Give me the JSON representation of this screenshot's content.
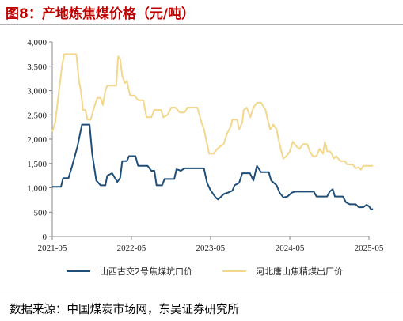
{
  "title": "图8：产地炼焦煤价格（元/吨）",
  "source": "数据来源：中国煤炭市场网，东吴证券研究所",
  "chart_data": {
    "type": "line",
    "y_ticks": [
      "0",
      "500",
      "1,000",
      "1,500",
      "2,000",
      "2,500",
      "3,000",
      "3,500",
      "4,000"
    ],
    "x_ticks": [
      "2021-05",
      "2022-05",
      "2023-05",
      "2024-05",
      "2025-05"
    ],
    "ylim": [
      0,
      4000
    ],
    "xlim": [
      "2021-05",
      "2025-05"
    ],
    "grid": false,
    "legend_position": "bottom",
    "series": [
      {
        "name": "山西古交2号焦煤坑口价",
        "color": "#1f4e79",
        "points": [
          [
            "2021-05-01",
            1020
          ],
          [
            "2021-05-20",
            1020
          ],
          [
            "2021-06-10",
            1020
          ],
          [
            "2021-06-20",
            1200
          ],
          [
            "2021-07-15",
            1200
          ],
          [
            "2021-08-01",
            1450
          ],
          [
            "2021-08-25",
            1850
          ],
          [
            "2021-09-15",
            2300
          ],
          [
            "2021-10-20",
            2300
          ],
          [
            "2021-11-01",
            1700
          ],
          [
            "2021-11-20",
            1150
          ],
          [
            "2021-12-10",
            1050
          ],
          [
            "2022-01-01",
            1050
          ],
          [
            "2022-01-10",
            1250
          ],
          [
            "2022-02-01",
            1300
          ],
          [
            "2022-02-25",
            1120
          ],
          [
            "2022-03-10",
            1200
          ],
          [
            "2022-03-20",
            1550
          ],
          [
            "2022-04-10",
            1550
          ],
          [
            "2022-04-20",
            1650
          ],
          [
            "2022-05-20",
            1650
          ],
          [
            "2022-06-01",
            1450
          ],
          [
            "2022-07-15",
            1450
          ],
          [
            "2022-08-01",
            1350
          ],
          [
            "2022-08-15",
            1350
          ],
          [
            "2022-08-25",
            1050
          ],
          [
            "2022-09-20",
            1050
          ],
          [
            "2022-10-01",
            1180
          ],
          [
            "2022-11-15",
            1180
          ],
          [
            "2022-11-25",
            1380
          ],
          [
            "2022-12-15",
            1350
          ],
          [
            "2023-01-01",
            1400
          ],
          [
            "2023-04-01",
            1400
          ],
          [
            "2023-04-15",
            1100
          ],
          [
            "2023-05-01",
            950
          ],
          [
            "2023-05-25",
            800
          ],
          [
            "2023-06-05",
            760
          ],
          [
            "2023-06-15",
            800
          ],
          [
            "2023-07-01",
            870
          ],
          [
            "2023-07-20",
            900
          ],
          [
            "2023-08-10",
            940
          ],
          [
            "2023-08-20",
            1050
          ],
          [
            "2023-09-10",
            1100
          ],
          [
            "2023-09-25",
            1300
          ],
          [
            "2023-10-30",
            1300
          ],
          [
            "2023-11-15",
            1150
          ],
          [
            "2023-12-01",
            1450
          ],
          [
            "2023-12-20",
            1320
          ],
          [
            "2024-01-25",
            1320
          ],
          [
            "2024-02-05",
            1150
          ],
          [
            "2024-03-01",
            1050
          ],
          [
            "2024-03-15",
            900
          ],
          [
            "2024-04-01",
            800
          ],
          [
            "2024-04-20",
            820
          ],
          [
            "2024-05-10",
            900
          ],
          [
            "2024-05-25",
            920
          ],
          [
            "2024-08-20",
            920
          ],
          [
            "2024-09-01",
            820
          ],
          [
            "2024-10-20",
            820
          ],
          [
            "2024-11-01",
            920
          ],
          [
            "2024-11-15",
            970
          ],
          [
            "2024-11-25",
            820
          ],
          [
            "2025-01-01",
            820
          ],
          [
            "2025-01-15",
            700
          ],
          [
            "2025-02-01",
            660
          ],
          [
            "2025-03-01",
            660
          ],
          [
            "2025-03-15",
            600
          ],
          [
            "2025-04-05",
            600
          ],
          [
            "2025-04-20",
            650
          ],
          [
            "2025-05-01",
            620
          ],
          [
            "2025-05-10",
            560
          ],
          [
            "2025-05-20",
            560
          ]
        ]
      },
      {
        "name": "河北唐山焦精煤出厂价",
        "color": "#f2d78c",
        "points": [
          [
            "2021-05-01",
            2150
          ],
          [
            "2021-05-15",
            2350
          ],
          [
            "2021-06-01",
            3000
          ],
          [
            "2021-06-15",
            3500
          ],
          [
            "2021-06-25",
            3750
          ],
          [
            "2021-08-20",
            3750
          ],
          [
            "2021-09-01",
            3200
          ],
          [
            "2021-09-10",
            3000
          ],
          [
            "2021-09-20",
            2600
          ],
          [
            "2021-10-01",
            2600
          ],
          [
            "2021-10-10",
            2400
          ],
          [
            "2021-10-25",
            2400
          ],
          [
            "2021-11-10",
            2650
          ],
          [
            "2021-11-25",
            2850
          ],
          [
            "2021-12-10",
            2850
          ],
          [
            "2021-12-20",
            2700
          ],
          [
            "2022-01-01",
            3000
          ],
          [
            "2022-01-10",
            3100
          ],
          [
            "2022-02-01",
            3100
          ],
          [
            "2022-02-20",
            3100
          ],
          [
            "2022-03-01",
            3700
          ],
          [
            "2022-03-10",
            3650
          ],
          [
            "2022-03-20",
            3300
          ],
          [
            "2022-04-01",
            3150
          ],
          [
            "2022-04-10",
            3200
          ],
          [
            "2022-04-25",
            2900
          ],
          [
            "2022-05-15",
            2900
          ],
          [
            "2022-06-01",
            2800
          ],
          [
            "2022-06-25",
            2800
          ],
          [
            "2022-07-10",
            2450
          ],
          [
            "2022-08-01",
            2450
          ],
          [
            "2022-08-15",
            2600
          ],
          [
            "2022-09-15",
            2600
          ],
          [
            "2022-09-25",
            2450
          ],
          [
            "2022-10-15",
            2500
          ],
          [
            "2022-11-01",
            2650
          ],
          [
            "2022-11-20",
            2650
          ],
          [
            "2022-12-10",
            2550
          ],
          [
            "2023-01-01",
            2550
          ],
          [
            "2023-01-15",
            2650
          ],
          [
            "2023-03-01",
            2650
          ],
          [
            "2023-03-20",
            2350
          ],
          [
            "2023-04-01",
            2200
          ],
          [
            "2023-04-15",
            1900
          ],
          [
            "2023-04-25",
            1700
          ],
          [
            "2023-05-15",
            1700
          ],
          [
            "2023-06-01",
            1800
          ],
          [
            "2023-06-15",
            1850
          ],
          [
            "2023-07-01",
            1900
          ],
          [
            "2023-07-15",
            2100
          ],
          [
            "2023-08-01",
            2250
          ],
          [
            "2023-08-10",
            2400
          ],
          [
            "2023-09-01",
            2400
          ],
          [
            "2023-09-10",
            2200
          ],
          [
            "2023-09-25",
            2350
          ],
          [
            "2023-10-01",
            2600
          ],
          [
            "2023-10-15",
            2650
          ],
          [
            "2023-11-01",
            2450
          ],
          [
            "2023-11-15",
            2650
          ],
          [
            "2023-12-01",
            2750
          ],
          [
            "2023-12-20",
            2750
          ],
          [
            "2024-01-10",
            2600
          ],
          [
            "2024-01-20",
            2400
          ],
          [
            "2024-02-01",
            2200
          ],
          [
            "2024-02-15",
            2300
          ],
          [
            "2024-03-01",
            2200
          ],
          [
            "2024-03-10",
            2000
          ],
          [
            "2024-03-20",
            1800
          ],
          [
            "2024-04-01",
            1600
          ],
          [
            "2024-04-15",
            1650
          ],
          [
            "2024-05-01",
            1750
          ],
          [
            "2024-05-15",
            1950
          ],
          [
            "2024-06-01",
            1850
          ],
          [
            "2024-06-15",
            1800
          ],
          [
            "2024-07-01",
            1900
          ],
          [
            "2024-07-20",
            1900
          ],
          [
            "2024-08-01",
            1750
          ],
          [
            "2024-08-15",
            1650
          ],
          [
            "2024-09-01",
            1650
          ],
          [
            "2024-09-15",
            1800
          ],
          [
            "2024-10-01",
            1700
          ],
          [
            "2024-10-10",
            1950
          ],
          [
            "2024-10-20",
            1750
          ],
          [
            "2024-11-01",
            1750
          ],
          [
            "2024-11-10",
            1700
          ],
          [
            "2024-11-20",
            1600
          ],
          [
            "2024-12-01",
            1650
          ],
          [
            "2024-12-20",
            1550
          ],
          [
            "2025-01-10",
            1550
          ],
          [
            "2025-01-20",
            1480
          ],
          [
            "2025-02-15",
            1480
          ],
          [
            "2025-03-01",
            1400
          ],
          [
            "2025-03-15",
            1420
          ],
          [
            "2025-03-25",
            1370
          ],
          [
            "2025-04-05",
            1450
          ],
          [
            "2025-05-20",
            1450
          ]
        ]
      }
    ]
  }
}
